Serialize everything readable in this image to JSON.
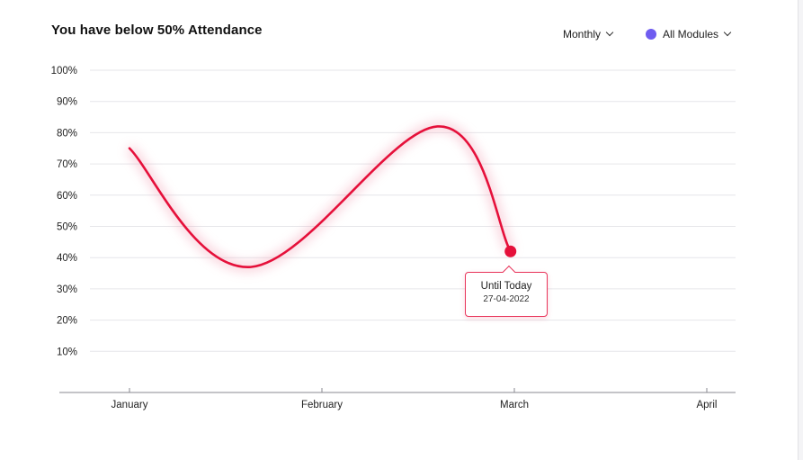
{
  "header": {
    "title": "You have below 50% Attendance",
    "period_label": "Monthly",
    "modules_label": "All Modules",
    "modules_dot_color": "#6f5cf0"
  },
  "tooltip": {
    "label": "Until Today",
    "date": "27-04-2022"
  },
  "chart_data": {
    "type": "line",
    "title": "You have below 50% Attendance",
    "xlabel": "",
    "ylabel": "",
    "categories": [
      "January",
      "February",
      "March",
      "April"
    ],
    "y_ticks": [
      "10%",
      "20%",
      "30%",
      "40%",
      "50%",
      "60%",
      "70%",
      "80%",
      "90%",
      "100%"
    ],
    "ylim": [
      0,
      100
    ],
    "grid": true,
    "line_color": "#e5103a",
    "series": [
      {
        "x": [
          0,
          0.63,
          1.6,
          1.98
        ],
        "values": [
          75,
          37,
          82,
          42
        ]
      }
    ],
    "highlight_point": {
      "x": 1.98,
      "value": 42
    }
  }
}
